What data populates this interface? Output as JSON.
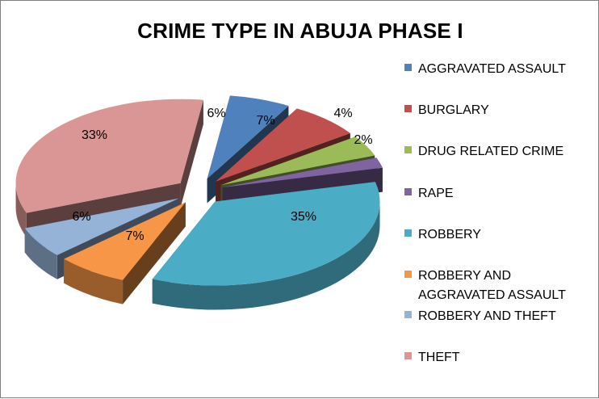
{
  "chart_data": {
    "type": "pie",
    "title": "CRIME TYPE IN ABUJA PHASE I",
    "legend_position": "right",
    "slices": [
      {
        "name": "AGGRAVATED ASSAULT",
        "value": 6,
        "label": "6%",
        "color": "#4f81bd"
      },
      {
        "name": "BURGLARY",
        "value": 7,
        "label": "7%",
        "color": "#c0504d"
      },
      {
        "name": "DRUG RELATED CRIME",
        "value": 4,
        "label": "4%",
        "color": "#9bbb59"
      },
      {
        "name": "RAPE",
        "value": 2,
        "label": "2%",
        "color": "#8064a2"
      },
      {
        "name": "ROBBERY",
        "value": 35,
        "label": "35%",
        "color": "#4bacc6"
      },
      {
        "name": "ROBBERY AND AGGRAVATED ASSAULT",
        "value": 7,
        "label": "7%",
        "color": "#f79646"
      },
      {
        "name": "ROBBERY AND THEFT",
        "value": 6,
        "label": "6%",
        "color": "#95b3d7"
      },
      {
        "name": "THEFT",
        "value": 33,
        "label": "33%",
        "color": "#d99694"
      }
    ]
  }
}
